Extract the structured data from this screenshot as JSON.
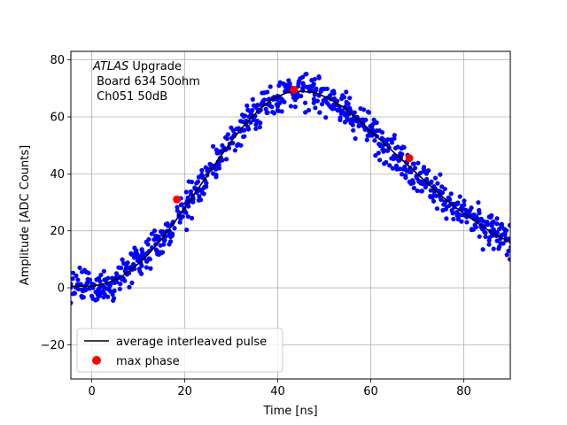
{
  "chart_data": {
    "type": "scatter",
    "xlabel": "Time [ns]",
    "ylabel": "Amplitude [ADC Counts]",
    "xlim": [
      -4.5,
      90
    ],
    "ylim": [
      -32,
      83
    ],
    "xticks": [
      0,
      20,
      40,
      60,
      80
    ],
    "yticks": [
      -20,
      0,
      20,
      40,
      60,
      80
    ],
    "xtick_labels": [
      "0",
      "20",
      "40",
      "60",
      "80"
    ],
    "ytick_labels": [
      "−20",
      "0",
      "20",
      "40",
      "60",
      "80"
    ],
    "grid": true,
    "legend_position": "lower-left",
    "annotation": {
      "experiment": "ATLAS",
      "line1_rest": " Upgrade",
      "line2": " Board 634 50ohm",
      "line3": " Ch051 50dB"
    },
    "series": [
      {
        "name": "average interleaved pulse",
        "kind": "line",
        "color": "#000000",
        "x": [
          -4.5,
          0,
          3,
          6,
          9,
          12,
          15,
          18,
          21,
          24,
          27,
          30,
          33,
          36,
          39,
          42,
          45,
          48,
          51,
          54,
          57,
          60,
          63,
          66,
          69,
          72,
          75,
          78,
          81,
          84,
          87,
          90
        ],
        "y": [
          0.5,
          0.6,
          1.5,
          3.5,
          7,
          11.5,
          17,
          23.5,
          30.5,
          37.5,
          44.5,
          51.5,
          57.5,
          62.5,
          66.5,
          68.5,
          69,
          68.5,
          66.5,
          63.5,
          59.5,
          55,
          50.5,
          46,
          41.5,
          37,
          32.5,
          28.5,
          25,
          21.5,
          18.5,
          16
        ]
      },
      {
        "name": "max phase",
        "kind": "marker",
        "color": "#ff0000",
        "x": [
          18.3,
          43.5,
          68.3
        ],
        "y": [
          31,
          69.5,
          45.5
        ]
      }
    ],
    "samples": {
      "color": "#0000ff",
      "spread": 5,
      "step": 0.35
    }
  }
}
